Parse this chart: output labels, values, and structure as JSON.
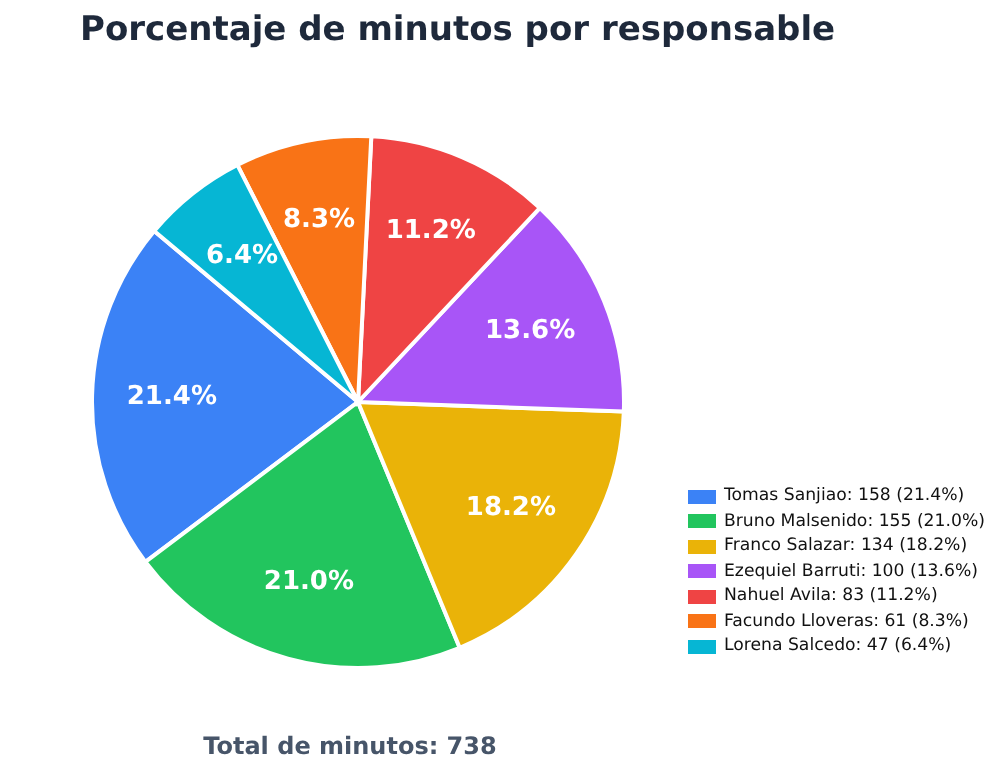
{
  "chart_data": {
    "type": "pie",
    "title": "Porcentaje de minutos por responsable",
    "categories": [
      "Tomas Sanjiao: 158 (21.4%)",
      "Bruno Malsenido: 155 (21.0%)",
      "Franco Salazar: 134 (18.2%)",
      "Ezequiel Barruti: 100 (13.6%)",
      "Nahuel Avila: 83 (11.2%)",
      "Facundo Lloveras: 61 (8.3%)",
      "Lorena Salcedo: 47 (6.4%)"
    ],
    "values": [
      21.4,
      21.0,
      18.2,
      13.6,
      11.2,
      8.3,
      6.4
    ],
    "colors": [
      "#3b82f6",
      "#22c55e",
      "#eab308",
      "#a855f7",
      "#ef4444",
      "#f97316",
      "#06b6d4"
    ],
    "value_labels": [
      "21.4%",
      "21.0%",
      "18.2%",
      "13.6%",
      "11.2%",
      "8.3%",
      "6.4%"
    ],
    "legend": "right",
    "annotations": [
      "Total de minutos: 738"
    ]
  }
}
